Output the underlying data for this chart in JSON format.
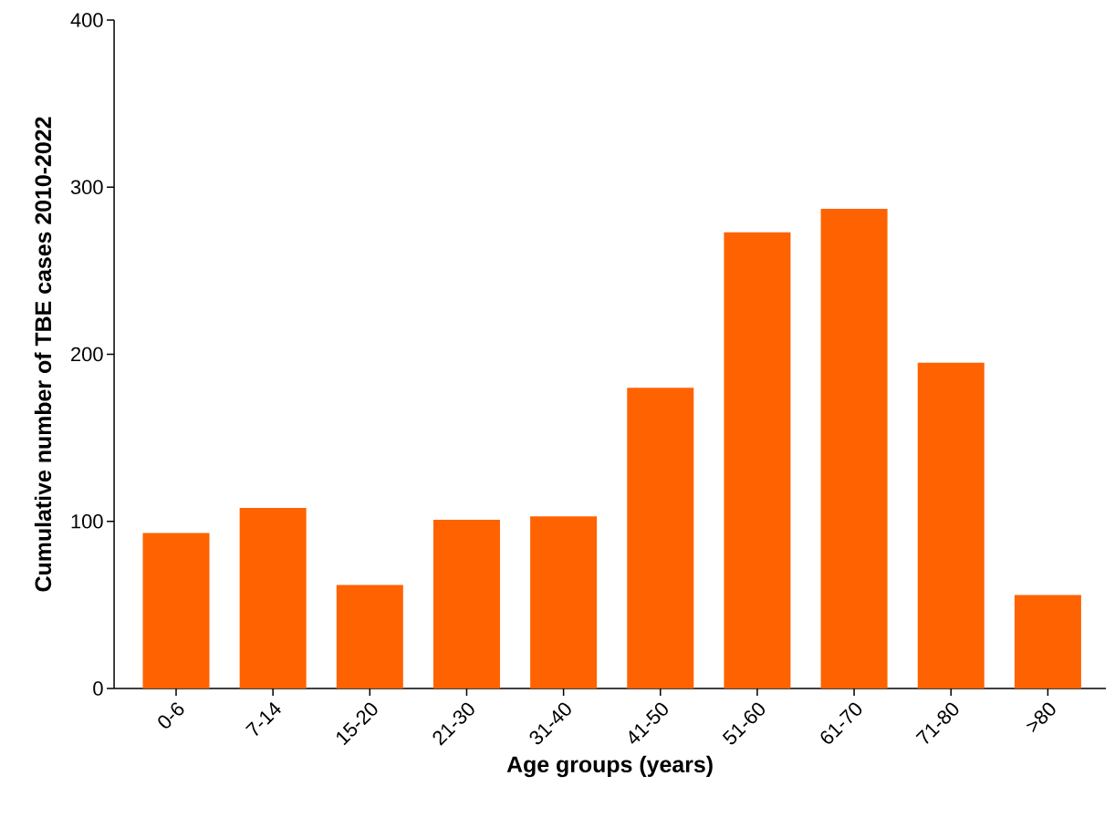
{
  "chart_data": {
    "type": "bar",
    "xlabel": "Age groups (years)",
    "ylabel": "Cumulative number of TBE cases 2010-2022",
    "categories": [
      "0-6",
      "7-14",
      "15-20",
      "21-30",
      "31-40",
      "41-50",
      "51-60",
      "61-70",
      "71-80",
      ">80"
    ],
    "values": [
      93,
      108,
      62,
      101,
      103,
      180,
      273,
      287,
      195,
      56
    ],
    "color": "#ff6200",
    "ylim": [
      0,
      400
    ],
    "yticks": [
      0,
      100,
      200,
      300,
      400
    ],
    "grid": false
  }
}
